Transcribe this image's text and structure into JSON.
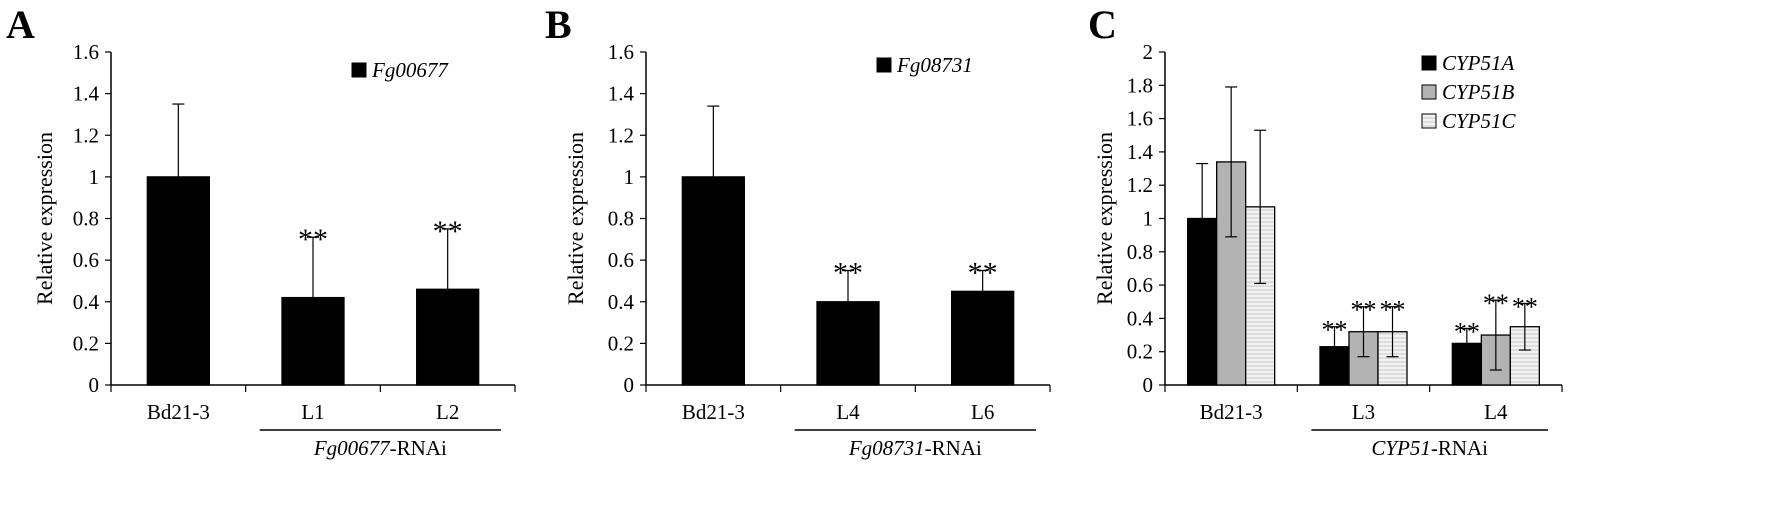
{
  "chart_data": [
    {
      "type": "bar",
      "panel_label": "A",
      "ylabel": "Relative expression",
      "ylim": [
        0,
        1.6
      ],
      "yticks": [
        "0",
        "0.2",
        "0.4",
        "0.6",
        "0.8",
        "1",
        "1.2",
        "1.4",
        "1.6"
      ],
      "categories": [
        "Bd21-3",
        "L1",
        "L2"
      ],
      "series": [
        {
          "name": "Fg00677",
          "values": [
            1.0,
            0.42,
            0.46
          ],
          "errors": [
            0.35,
            0.29,
            0.29
          ],
          "color": "#000000"
        }
      ],
      "significance": [
        "",
        "**",
        "**"
      ],
      "group": {
        "italic": "Fg00677",
        "suffix": "-RNAi",
        "from": 1,
        "to": 2
      },
      "legend": {
        "position": "top-right"
      }
    },
    {
      "type": "bar",
      "panel_label": "B",
      "ylabel": "Relative expression",
      "ylim": [
        0,
        1.6
      ],
      "yticks": [
        "0",
        "0.2",
        "0.4",
        "0.6",
        "0.8",
        "1",
        "1.2",
        "1.4",
        "1.6"
      ],
      "categories": [
        "Bd21-3",
        "L4",
        "L6"
      ],
      "series": [
        {
          "name": "Fg08731",
          "values": [
            1.0,
            0.4,
            0.45
          ],
          "errors": [
            0.34,
            0.15,
            0.1
          ],
          "color": "#000000"
        }
      ],
      "significance": [
        "",
        "**",
        "**"
      ],
      "group": {
        "italic": "Fg08731",
        "suffix": "-RNAi",
        "from": 1,
        "to": 2
      },
      "legend": {
        "position": "top-right"
      }
    },
    {
      "type": "bar",
      "panel_label": "C",
      "ylabel": "Relative expression",
      "ylim": [
        0,
        2
      ],
      "yticks": [
        "0",
        "0.2",
        "0.4",
        "0.6",
        "0.8",
        "1",
        "1.2",
        "1.4",
        "1.6",
        "1.8",
        "2"
      ],
      "categories": [
        "Bd21-3",
        "L3",
        "L4"
      ],
      "series": [
        {
          "name": "CYP51A",
          "values": [
            1.0,
            0.23,
            0.25
          ],
          "errors": [
            0.33,
            0.12,
            0.09
          ],
          "color": "#000000"
        },
        {
          "name": "CYP51B",
          "values": [
            1.34,
            0.32,
            0.3
          ],
          "errors": [
            0.45,
            0.15,
            0.21
          ],
          "color": "#b3b3b3"
        },
        {
          "name": "CYP51C",
          "values": [
            1.07,
            0.32,
            0.35
          ],
          "errors": [
            0.46,
            0.15,
            0.14
          ],
          "color": "#eeeeee"
        }
      ],
      "significance": [
        [
          "",
          "",
          ""
        ],
        [
          "**",
          "**",
          "**"
        ],
        [
          "**",
          "**",
          "**"
        ]
      ],
      "group": {
        "italic": "CYP51",
        "suffix": "-RNAi",
        "from": 1,
        "to": 2
      },
      "legend": {
        "position": "top-right"
      }
    }
  ]
}
